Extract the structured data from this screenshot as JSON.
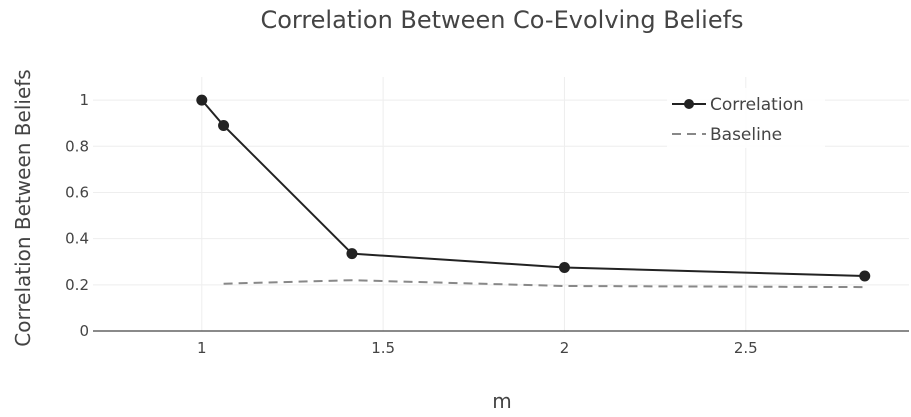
{
  "chart_data": {
    "type": "line",
    "title": "Correlation Between Co-Evolving Beliefs",
    "xlabel": "m",
    "ylabel": "Correlation Between Beliefs",
    "xlim": [
      0.7,
      2.95
    ],
    "ylim": [
      0,
      1.1
    ],
    "x_ticks": [
      1,
      1.5,
      2,
      2.5
    ],
    "x_tick_labels": [
      "1",
      "1.5",
      "2",
      "2.5"
    ],
    "y_ticks": [
      0,
      0.2,
      0.4,
      0.6,
      0.8,
      1
    ],
    "y_tick_labels": [
      "0",
      "0.2",
      "0.4",
      "0.6",
      "0.8",
      "1"
    ],
    "grid": true,
    "legend_position": "top-right",
    "series": [
      {
        "name": "Correlation",
        "style": "solid-markers",
        "color": "#222222",
        "x": [
          1,
          1.06,
          1.414,
          2,
          2.828
        ],
        "y": [
          1.0,
          0.89,
          0.335,
          0.275,
          0.238
        ]
      },
      {
        "name": "Baseline",
        "style": "dashed",
        "color": "#888888",
        "x": [
          1.06,
          1.414,
          2,
          2.828
        ],
        "y": [
          0.205,
          0.22,
          0.195,
          0.19
        ]
      }
    ]
  }
}
